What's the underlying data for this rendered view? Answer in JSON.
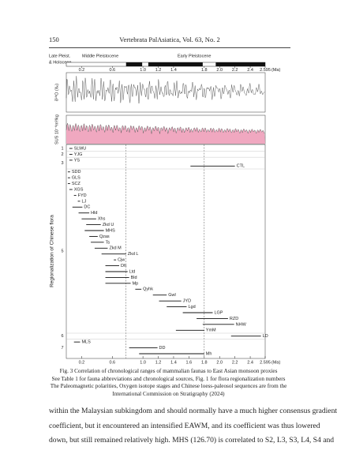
{
  "header": {
    "page_number": "150",
    "journal": "Vertebrata PalAsiatica, Vol. 63, No. 2"
  },
  "figure": {
    "epoch_labels": [
      "Late Pleist.",
      "& Holocene",
      "Middle Pleistocene",
      "Early Pleistocene"
    ],
    "xlim": [
      0,
      2.595
    ],
    "top_xticks": [
      0.2,
      0.6,
      {
        "value": 1,
        "label": "1.0"
      },
      1.2,
      1.4,
      1.8,
      {
        "value": 2,
        "label": "2.0"
      },
      2.2,
      2.4,
      2.595
    ],
    "bottom_xticks": [
      0.2,
      0.6,
      {
        "value": 1,
        "label": "1.0"
      },
      1.2,
      1.4,
      1.6,
      1.8,
      {
        "value": 2,
        "label": "2.0"
      },
      2.2,
      2.4,
      2.595
    ],
    "x_unit": "(Ma)",
    "polarity_reversed": [
      [
        0.78,
        0.99
      ],
      [
        1.07,
        1.78
      ],
      [
        1.95,
        2.595
      ]
    ],
    "oxygen_label": "δ¹⁸O (‰)",
    "loess_label": "SUS 10⁻⁸m³/kg",
    "boundaries": [
      0.78,
      1.8
    ],
    "y_axis_label": "Regionalization of Chinese flora",
    "groups": [
      {
        "label": "1",
        "faunas": [
          {
            "name": "SLWU",
            "range": [
              0.04,
              0.08
            ]
          }
        ]
      },
      {
        "label": "2",
        "faunas": [
          {
            "name": "YJG",
            "range": [
              0.04,
              0.08
            ]
          }
        ]
      },
      {
        "label": "3",
        "faunas": [
          {
            "name": "YS",
            "range": [
              0.04,
              0.08
            ]
          },
          {
            "name": "CTL",
            "range": [
              1.62,
              2.2
            ]
          }
        ]
      },
      {
        "label": "5",
        "faunas": [
          {
            "name": "SDD",
            "range": [
              0.02,
              0.05
            ]
          },
          {
            "name": "GLS",
            "range": [
              0.02,
              0.05
            ]
          },
          {
            "name": "SCZ",
            "range": [
              0.02,
              0.05
            ]
          },
          {
            "name": "XGS",
            "range": [
              0.04,
              0.08
            ]
          },
          {
            "name": "FYD",
            "range": [
              0.1,
              0.13
            ]
          },
          {
            "name": "LJ",
            "range": [
              0.15,
              0.18
            ]
          },
          {
            "name": "DC",
            "range": [
              0.08,
              0.21
            ]
          },
          {
            "name": "Hld",
            "range": [
              0.16,
              0.3
            ]
          },
          {
            "name": "Xhs",
            "range": [
              0.2,
              0.39
            ]
          },
          {
            "name": "Zkd U",
            "range": [
              0.26,
              0.45
            ]
          },
          {
            "name": "MHS",
            "range": [
              0.24,
              0.49
            ]
          },
          {
            "name": "Qzas",
            "range": [
              0.3,
              0.41
            ]
          },
          {
            "name": "Ts",
            "range": [
              0.32,
              0.49
            ]
          },
          {
            "name": "Zkd M",
            "range": [
              0.37,
              0.54
            ]
          },
          {
            "name": "Zkd L",
            "range": [
              0.46,
              0.78
            ]
          },
          {
            "name": "Cjw",
            "range": [
              0.62,
              0.65
            ]
          },
          {
            "name": "Dh",
            "range": [
              0.51,
              0.69
            ]
          },
          {
            "name": "Ltd",
            "range": [
              0.51,
              0.8
            ]
          },
          {
            "name": "Bld",
            "range": [
              0.51,
              0.82
            ]
          },
          {
            "name": "Mp",
            "range": [
              0.51,
              0.84
            ]
          },
          {
            "name": "Qyhk",
            "range": [
              0.9,
              0.98
            ]
          },
          {
            "name": "Gwl",
            "range": [
              1.13,
              1.31
            ]
          },
          {
            "name": "JYD",
            "range": [
              1.21,
              1.5
            ]
          },
          {
            "name": "Lgd",
            "range": [
              1.31,
              1.57
            ]
          },
          {
            "name": "LGP",
            "range": [
              1.52,
              1.91
            ]
          },
          {
            "name": "RZD",
            "range": [
              1.7,
              2.11
            ]
          },
          {
            "name": "NHW",
            "range": [
              1.78,
              2.19
            ]
          },
          {
            "name": "YmM",
            "range": [
              1.43,
              1.8
            ]
          }
        ]
      },
      {
        "label": "6",
        "faunas": [
          {
            "name": "LD",
            "range": [
              2.15,
              2.54
            ]
          }
        ]
      },
      {
        "label": "7",
        "faunas": [
          {
            "name": "MLS",
            "range": [
              0.1,
              0.18
            ]
          },
          {
            "name": "DD",
            "range": [
              0.82,
              1.19
            ]
          },
          {
            "name": "Mh",
            "range": [
              0.95,
              1.8
            ]
          }
        ]
      }
    ]
  },
  "caption": {
    "lines": [
      "Fig. 3   Correlation of chronological ranges of mammalian faunas to East Asian monsoon proxies",
      "See Table 1 for fauna abbreviations and chronological sources, Fig. 1 for flora regionalization numbers",
      "The Paleomagnetic polarities, Oxygen isotope stages and Chinese loess-paleosol sequences are from the",
      "International Commission on Stratigraphy (2024)"
    ]
  },
  "body": {
    "lines": [
      "within the Malaysian subkingdom and should normally have a much higher consensus gradient",
      "coefficient, but it encountered an intensified EAWM, and its coefficient was thus lowered",
      "down, but still remained relatively high. MHS (126.70) is correlated to S2, L3, S3, L4, S4 and"
    ]
  }
}
